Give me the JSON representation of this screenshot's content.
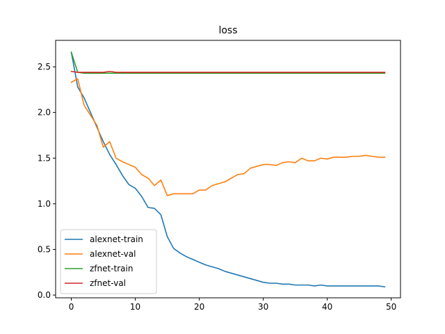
{
  "chart_data": {
    "type": "line",
    "title": "loss",
    "xlabel": "",
    "ylabel": "",
    "xlim": [
      -2.45,
      51.45
    ],
    "ylim": [
      -0.03,
      2.79
    ],
    "xticks": [
      0,
      10,
      20,
      30,
      40,
      50
    ],
    "yticks": [
      0.0,
      0.5,
      1.0,
      1.5,
      2.0,
      2.5
    ],
    "legend_position": "lower-left",
    "grid": false,
    "x": [
      0,
      1,
      2,
      3,
      4,
      5,
      6,
      7,
      8,
      9,
      10,
      11,
      12,
      13,
      14,
      15,
      16,
      17,
      18,
      19,
      20,
      21,
      22,
      23,
      24,
      25,
      26,
      27,
      28,
      29,
      30,
      31,
      32,
      33,
      34,
      35,
      36,
      37,
      38,
      39,
      40,
      41,
      42,
      43,
      44,
      45,
      46,
      47,
      48,
      49
    ],
    "series": [
      {
        "name": "alexnet-train",
        "color": "#1f77b4",
        "values": [
          2.66,
          2.28,
          2.16,
          2.0,
          1.84,
          1.68,
          1.54,
          1.43,
          1.31,
          1.21,
          1.17,
          1.08,
          0.96,
          0.95,
          0.88,
          0.64,
          0.51,
          0.46,
          0.42,
          0.39,
          0.36,
          0.33,
          0.31,
          0.29,
          0.26,
          0.24,
          0.22,
          0.2,
          0.18,
          0.16,
          0.14,
          0.13,
          0.13,
          0.12,
          0.12,
          0.11,
          0.11,
          0.11,
          0.1,
          0.11,
          0.1,
          0.1,
          0.1,
          0.1,
          0.1,
          0.1,
          0.1,
          0.1,
          0.1,
          0.09
        ]
      },
      {
        "name": "alexnet-val",
        "color": "#ff7f0e",
        "values": [
          2.33,
          2.37,
          2.08,
          1.97,
          1.86,
          1.62,
          1.68,
          1.5,
          1.46,
          1.43,
          1.4,
          1.32,
          1.28,
          1.2,
          1.26,
          1.09,
          1.11,
          1.11,
          1.11,
          1.11,
          1.15,
          1.15,
          1.2,
          1.22,
          1.24,
          1.28,
          1.32,
          1.33,
          1.39,
          1.41,
          1.43,
          1.43,
          1.42,
          1.45,
          1.46,
          1.45,
          1.5,
          1.47,
          1.47,
          1.5,
          1.49,
          1.51,
          1.51,
          1.51,
          1.52,
          1.52,
          1.53,
          1.52,
          1.51,
          1.51
        ]
      },
      {
        "name": "zfnet-train",
        "color": "#2ca02c",
        "values": [
          2.66,
          2.44,
          2.43,
          2.43,
          2.43,
          2.43,
          2.43,
          2.43,
          2.43,
          2.43,
          2.43,
          2.43,
          2.43,
          2.43,
          2.43,
          2.43,
          2.43,
          2.43,
          2.43,
          2.43,
          2.43,
          2.43,
          2.43,
          2.43,
          2.43,
          2.43,
          2.43,
          2.43,
          2.43,
          2.43,
          2.43,
          2.43,
          2.43,
          2.43,
          2.43,
          2.43,
          2.43,
          2.43,
          2.43,
          2.43,
          2.43,
          2.43,
          2.43,
          2.43,
          2.43,
          2.43,
          2.43,
          2.43,
          2.43,
          2.43
        ]
      },
      {
        "name": "zfnet-val",
        "color": "#d62728",
        "values": [
          2.45,
          2.44,
          2.44,
          2.44,
          2.44,
          2.44,
          2.45,
          2.44,
          2.44,
          2.44,
          2.44,
          2.44,
          2.44,
          2.44,
          2.44,
          2.44,
          2.44,
          2.44,
          2.44,
          2.44,
          2.44,
          2.44,
          2.44,
          2.44,
          2.44,
          2.44,
          2.44,
          2.44,
          2.44,
          2.44,
          2.44,
          2.44,
          2.44,
          2.44,
          2.44,
          2.44,
          2.44,
          2.44,
          2.44,
          2.44,
          2.44,
          2.44,
          2.44,
          2.44,
          2.44,
          2.44,
          2.44,
          2.44,
          2.44,
          2.44
        ]
      }
    ]
  }
}
